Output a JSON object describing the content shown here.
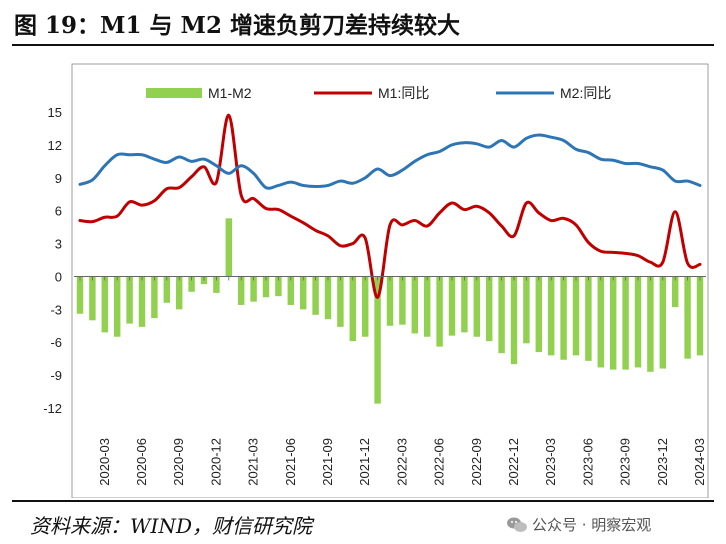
{
  "title": "图 19：M1 与 M2 增速负剪刀差持续较大",
  "source": "资料来源：WIND，财信研究院",
  "watermark": "公众号 · 明察宏观",
  "colors": {
    "diff": "#92d050",
    "m1": "#c00000",
    "m2": "#2e75b6"
  },
  "chart_data": {
    "type": "bar+line",
    "ylim": [
      -12,
      15
    ],
    "yticks": [
      15,
      12,
      9,
      6,
      3,
      0,
      -3,
      -6,
      -9,
      -12
    ],
    "xtick_labels": [
      "2020-03",
      "2020-06",
      "2020-09",
      "2020-12",
      "2021-03",
      "2021-06",
      "2021-09",
      "2021-12",
      "2022-03",
      "2022-06",
      "2022-09",
      "2022-12",
      "2023-03",
      "2023-06",
      "2023-09",
      "2023-12",
      "2024-03"
    ],
    "months": [
      "2020-01",
      "2020-02",
      "2020-03",
      "2020-04",
      "2020-05",
      "2020-06",
      "2020-07",
      "2020-08",
      "2020-09",
      "2020-10",
      "2020-11",
      "2020-12",
      "2021-01",
      "2021-02",
      "2021-03",
      "2021-04",
      "2021-05",
      "2021-06",
      "2021-07",
      "2021-08",
      "2021-09",
      "2021-10",
      "2021-11",
      "2021-12",
      "2022-01",
      "2022-02",
      "2022-03",
      "2022-04",
      "2022-05",
      "2022-06",
      "2022-07",
      "2022-08",
      "2022-09",
      "2022-10",
      "2022-11",
      "2022-12",
      "2023-01",
      "2023-02",
      "2023-03",
      "2023-04",
      "2023-05",
      "2023-06",
      "2023-07",
      "2023-08",
      "2023-09",
      "2023-10",
      "2023-11",
      "2023-12",
      "2024-01",
      "2024-02",
      "2024-03"
    ],
    "series": [
      {
        "name": "M1-M2",
        "type": "bar",
        "values": [
          -3.4,
          -4.0,
          -5.1,
          -5.5,
          -4.3,
          -4.6,
          -3.8,
          -2.4,
          -3.0,
          -1.4,
          -0.7,
          -1.5,
          5.3,
          -2.6,
          -2.3,
          -1.9,
          -1.8,
          -2.6,
          -3.0,
          -3.5,
          -3.9,
          -4.6,
          -5.9,
          -5.5,
          -11.6,
          -4.5,
          -4.4,
          -5.2,
          -5.5,
          -6.4,
          -5.4,
          -5.1,
          -5.5,
          -5.9,
          -7.0,
          -8.0,
          -6.1,
          -6.9,
          -7.2,
          -7.6,
          -7.2,
          -7.7,
          -8.3,
          -8.5,
          -8.5,
          -8.3,
          -8.7,
          -8.4,
          -2.8,
          -7.5,
          -7.2
        ]
      },
      {
        "name": "M1:同比",
        "type": "line",
        "values": [
          5.1,
          5.0,
          5.4,
          5.5,
          6.8,
          6.5,
          6.9,
          8.0,
          8.1,
          9.1,
          10.0,
          8.6,
          14.7,
          7.4,
          7.1,
          6.2,
          6.1,
          5.5,
          4.9,
          4.2,
          3.7,
          2.8,
          3.0,
          3.5,
          -1.9,
          4.7,
          4.7,
          5.1,
          4.6,
          5.8,
          6.7,
          6.1,
          6.4,
          5.8,
          4.6,
          3.7,
          6.7,
          5.8,
          5.1,
          5.3,
          4.7,
          3.1,
          2.3,
          2.2,
          2.1,
          1.9,
          1.3,
          1.3,
          5.9,
          1.2,
          1.1
        ]
      },
      {
        "name": "M2:同比",
        "type": "line",
        "values": [
          8.4,
          8.8,
          10.1,
          11.1,
          11.1,
          11.1,
          10.7,
          10.4,
          10.9,
          10.5,
          10.7,
          10.1,
          9.4,
          10.1,
          9.4,
          8.1,
          8.3,
          8.6,
          8.3,
          8.2,
          8.3,
          8.7,
          8.5,
          9.0,
          9.8,
          9.2,
          9.7,
          10.5,
          11.1,
          11.4,
          12.0,
          12.2,
          12.1,
          11.8,
          12.4,
          11.8,
          12.6,
          12.9,
          12.7,
          12.4,
          11.6,
          11.3,
          10.7,
          10.6,
          10.3,
          10.3,
          10.0,
          9.7,
          8.7,
          8.7,
          8.3
        ]
      }
    ]
  }
}
